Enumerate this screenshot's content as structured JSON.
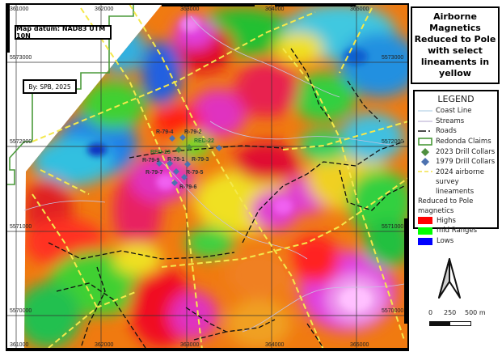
{
  "title": {
    "lines": [
      "Airborne Magnetics",
      "Reduced to Pole",
      "with select",
      "lineaments in",
      "yellow"
    ]
  },
  "datum_label": "Map datum: NAD83 UTM 10N",
  "author_label": "By: SPB, 2025",
  "grid": {
    "eastings": [
      "361000",
      "362000",
      "363000",
      "364000",
      "365000"
    ],
    "northings": [
      "5573000",
      "5572000",
      "5571000",
      "5570000"
    ]
  },
  "legend": {
    "title": "LEGEND",
    "items": [
      {
        "label": "Coast Line",
        "symbol": "line",
        "color": "#b8d4e8"
      },
      {
        "label": "Streams",
        "symbol": "line",
        "color": "#c0b8d8"
      },
      {
        "label": "Roads",
        "symbol": "dashed-line",
        "color": "#111111"
      },
      {
        "label": "Redonda Claims",
        "symbol": "polygon-outline",
        "color": "#4a9a3a"
      },
      {
        "label": "2023 Drill Collars",
        "symbol": "diamond",
        "color": "#4f8f3f"
      },
      {
        "label": "1979 Drill Collars",
        "symbol": "diamond",
        "color": "#4d72b0"
      },
      {
        "label": "2024 airborne survey lineaments",
        "symbol": "dashed-line",
        "color": "#f2e24a"
      }
    ],
    "ramp_title": "Reduced to Pole magnetics",
    "ramp": [
      {
        "label": "Highs",
        "color": "#ff0000"
      },
      {
        "label": "mid Ranges",
        "color": "#00ff00"
      },
      {
        "label": "Lows",
        "color": "#0000ff"
      }
    ]
  },
  "drill_labels": [
    "R-79-4",
    "R-79-2",
    "RED-22",
    "RED-23",
    "R-79-9",
    "R-79-1",
    "R-79-3",
    "R-79-7",
    "R-79-5",
    "R-79-6"
  ],
  "scale_bar": {
    "labels": [
      "0",
      "250",
      "500 m"
    ]
  },
  "north_arrow": "north-arrow-icon"
}
